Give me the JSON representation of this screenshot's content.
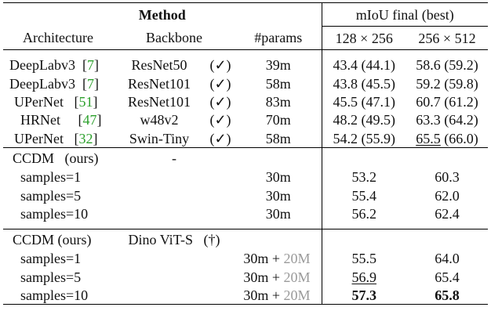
{
  "header": {
    "method": "Method",
    "miou": "mIoU final (best)",
    "col_arch": "Architecture",
    "col_backbone": "Backbone",
    "col_params": "#params",
    "col_res1": "128 × 256",
    "col_res2": "256 × 512"
  },
  "baselines": [
    {
      "arch": "DeepLabv3",
      "ref": "7",
      "backbone": "ResNet50",
      "mark": "(✓)",
      "params": "39m",
      "r1": "43.4 (44.1)",
      "r2": "58.6 (59.2)"
    },
    {
      "arch": "DeepLabv3",
      "ref": "7",
      "backbone": "ResNet101",
      "mark": "(✓)",
      "params": "58m",
      "r1": "43.8 (45.5)",
      "r2": "59.2 (59.8)"
    },
    {
      "arch": "UPerNet",
      "ref": "51",
      "backbone": "ResNet101",
      "mark": "(✓)",
      "params": "83m",
      "r1": "45.5 (47.1)",
      "r2": "60.7 (61.2)"
    },
    {
      "arch": "HRNet",
      "ref": "47",
      "backbone": "w48v2",
      "mark": "(✓)",
      "params": "70m",
      "r1": "48.2 (49.5)",
      "r2": "63.3 (64.2)"
    },
    {
      "arch": "UPerNet",
      "ref": "32",
      "backbone": "Swin-Tiny",
      "mark": "(✓)",
      "params": "58m",
      "r1": "54.2 (55.9)",
      "r2_u": "65.5",
      "r2_rest": " (66.0)"
    }
  ],
  "ccdm": {
    "title": "CCDM",
    "ours": "(ours)",
    "backbone": "-",
    "rows": [
      {
        "label": "samples=1",
        "params": "30m",
        "r1": "53.2",
        "r2": "60.3"
      },
      {
        "label": "samples=5",
        "params": "30m",
        "r1": "55.4",
        "r2": "62.0"
      },
      {
        "label": "samples=10",
        "params": "30m",
        "r1": "56.2",
        "r2": "62.4"
      }
    ]
  },
  "ccdm_dino": {
    "title": "CCDM (ours)",
    "backbone": "Dino ViT-S",
    "mark": "(†)",
    "plus_label": " + ",
    "rows": [
      {
        "label": "samples=1",
        "params": "30m",
        "extra": "20M",
        "r1": "55.5",
        "r2": "64.0"
      },
      {
        "label": "samples=5",
        "params": "30m",
        "extra": "20M",
        "r1": "56.9",
        "r2": "65.4"
      },
      {
        "label": "samples=10",
        "params": "30m",
        "extra": "20M",
        "r1": "57.3",
        "r2": "65.8"
      }
    ]
  },
  "colors": {
    "ref": "#2ca02c",
    "muted": "#9a9a9a",
    "rule": "#000000"
  }
}
